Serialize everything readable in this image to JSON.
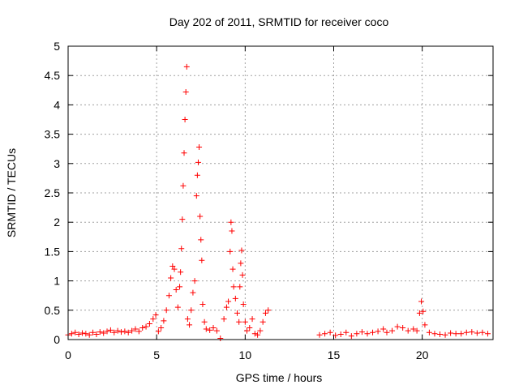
{
  "chart_data": {
    "type": "scatter",
    "title": "Day 202 of 2011, SRMTID for receiver coco",
    "xlabel": "GPS time / hours",
    "ylabel": "SRMTID / TECUs",
    "xlim": [
      0,
      24
    ],
    "ylim": [
      0,
      5
    ],
    "xticks": [
      0,
      5,
      10,
      15,
      20
    ],
    "xtick_labels": [
      "0",
      "5",
      "10",
      "15",
      "20"
    ],
    "yticks": [
      0,
      0.5,
      1,
      1.5,
      2,
      2.5,
      3,
      3.5,
      4,
      4.5,
      5
    ],
    "ytick_labels": [
      "0",
      "0.5",
      "1",
      "1.5",
      "2",
      "2.5",
      "3",
      "3.5",
      "4",
      "4.5",
      "5"
    ],
    "grid": true,
    "marker": "+",
    "color": "#ff0000",
    "series": [
      {
        "name": "SRMTID",
        "points": [
          [
            0.0,
            0.08
          ],
          [
            0.2,
            0.1
          ],
          [
            0.4,
            0.12
          ],
          [
            0.6,
            0.09
          ],
          [
            0.8,
            0.11
          ],
          [
            1.0,
            0.1
          ],
          [
            1.2,
            0.08
          ],
          [
            1.4,
            0.12
          ],
          [
            1.6,
            0.09
          ],
          [
            1.8,
            0.13
          ],
          [
            2.0,
            0.11
          ],
          [
            2.2,
            0.14
          ],
          [
            2.4,
            0.16
          ],
          [
            2.6,
            0.12
          ],
          [
            2.8,
            0.15
          ],
          [
            3.0,
            0.13
          ],
          [
            3.2,
            0.14
          ],
          [
            3.4,
            0.12
          ],
          [
            3.6,
            0.15
          ],
          [
            3.8,
            0.18
          ],
          [
            4.0,
            0.14
          ],
          [
            4.2,
            0.2
          ],
          [
            4.4,
            0.22
          ],
          [
            4.6,
            0.27
          ],
          [
            4.8,
            0.35
          ],
          [
            4.95,
            0.42
          ],
          [
            5.1,
            0.14
          ],
          [
            5.25,
            0.2
          ],
          [
            5.4,
            0.32
          ],
          [
            5.55,
            0.5
          ],
          [
            5.7,
            0.75
          ],
          [
            5.8,
            1.05
          ],
          [
            5.9,
            1.25
          ],
          [
            6.0,
            1.2
          ],
          [
            6.1,
            0.85
          ],
          [
            6.2,
            0.55
          ],
          [
            6.3,
            0.9
          ],
          [
            6.35,
            1.15
          ],
          [
            6.4,
            1.55
          ],
          [
            6.45,
            2.05
          ],
          [
            6.5,
            2.62
          ],
          [
            6.55,
            3.18
          ],
          [
            6.6,
            3.75
          ],
          [
            6.65,
            4.22
          ],
          [
            6.7,
            4.65
          ],
          [
            6.75,
            0.35
          ],
          [
            6.85,
            0.25
          ],
          [
            6.95,
            0.5
          ],
          [
            7.05,
            0.8
          ],
          [
            7.15,
            1.0
          ],
          [
            7.25,
            2.45
          ],
          [
            7.3,
            2.8
          ],
          [
            7.35,
            3.02
          ],
          [
            7.4,
            3.28
          ],
          [
            7.45,
            2.1
          ],
          [
            7.5,
            1.7
          ],
          [
            7.55,
            1.35
          ],
          [
            7.6,
            0.6
          ],
          [
            7.7,
            0.3
          ],
          [
            7.8,
            0.18
          ],
          [
            8.0,
            0.16
          ],
          [
            8.2,
            0.2
          ],
          [
            8.4,
            0.15
          ],
          [
            8.6,
            0.02
          ],
          [
            8.8,
            0.35
          ],
          [
            8.95,
            0.55
          ],
          [
            9.05,
            0.65
          ],
          [
            9.15,
            1.5
          ],
          [
            9.2,
            2.0
          ],
          [
            9.25,
            1.85
          ],
          [
            9.3,
            1.2
          ],
          [
            9.35,
            0.9
          ],
          [
            9.45,
            0.7
          ],
          [
            9.55,
            0.45
          ],
          [
            9.65,
            0.3
          ],
          [
            9.7,
            0.9
          ],
          [
            9.75,
            1.3
          ],
          [
            9.8,
            1.52
          ],
          [
            9.85,
            1.1
          ],
          [
            9.9,
            0.6
          ],
          [
            10.0,
            0.3
          ],
          [
            10.1,
            0.15
          ],
          [
            10.25,
            0.2
          ],
          [
            10.4,
            0.35
          ],
          [
            10.55,
            0.1
          ],
          [
            10.7,
            0.08
          ],
          [
            10.85,
            0.15
          ],
          [
            11.0,
            0.3
          ],
          [
            11.15,
            0.45
          ],
          [
            11.3,
            0.5
          ],
          [
            14.2,
            0.08
          ],
          [
            14.5,
            0.1
          ],
          [
            14.8,
            0.12
          ],
          [
            15.1,
            0.07
          ],
          [
            15.4,
            0.09
          ],
          [
            15.7,
            0.12
          ],
          [
            16.0,
            0.06
          ],
          [
            16.3,
            0.1
          ],
          [
            16.6,
            0.13
          ],
          [
            16.9,
            0.1
          ],
          [
            17.2,
            0.12
          ],
          [
            17.5,
            0.14
          ],
          [
            17.8,
            0.18
          ],
          [
            18.0,
            0.12
          ],
          [
            18.3,
            0.15
          ],
          [
            18.6,
            0.22
          ],
          [
            18.9,
            0.2
          ],
          [
            19.2,
            0.15
          ],
          [
            19.5,
            0.18
          ],
          [
            19.7,
            0.15
          ],
          [
            19.85,
            0.45
          ],
          [
            19.95,
            0.65
          ],
          [
            20.05,
            0.48
          ],
          [
            20.15,
            0.25
          ],
          [
            20.4,
            0.12
          ],
          [
            20.7,
            0.1
          ],
          [
            21.0,
            0.09
          ],
          [
            21.3,
            0.08
          ],
          [
            21.6,
            0.11
          ],
          [
            21.9,
            0.1
          ],
          [
            22.2,
            0.1
          ],
          [
            22.5,
            0.12
          ],
          [
            22.8,
            0.13
          ],
          [
            23.1,
            0.11
          ],
          [
            23.4,
            0.12
          ],
          [
            23.7,
            0.1
          ]
        ]
      }
    ]
  }
}
